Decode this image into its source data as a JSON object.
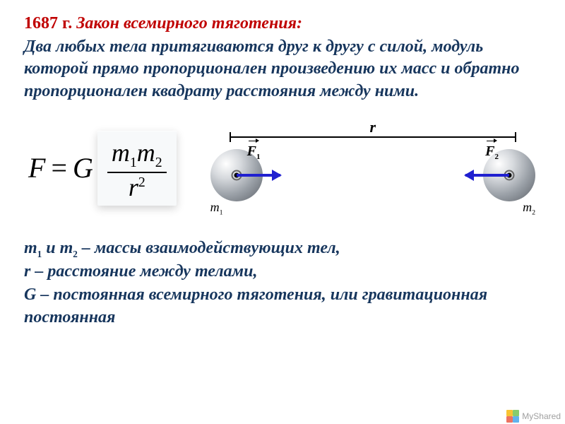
{
  "title": {
    "year": "1687 г.",
    "law_name": "Закон всемирного тяготения:"
  },
  "definition": "Два любых тела притягиваются друг к другу с силой, модуль которой прямо пропорционален произведению их масс и обратно пропорционален квадрату расстояния между ними.",
  "formula": {
    "lhs": "F",
    "equals": "=",
    "constant": "G",
    "numerator_m1": "m",
    "numerator_sub1": "1",
    "numerator_m2": "m",
    "numerator_sub2": "2",
    "denominator_r": "r",
    "denominator_exp": "2"
  },
  "diagram": {
    "distance_label": "r",
    "force1_base": "F",
    "force1_sub": "1",
    "force2_base": "F",
    "force2_sub": "2",
    "mass1_base": "m",
    "mass1_sub": "1",
    "mass2_base": "m",
    "mass2_sub": "2",
    "arrow_color": "#2020d0",
    "sphere_gradient_stops": [
      "#ffffff",
      "#d6d9dd",
      "#9aa0a7",
      "#5a5f66"
    ]
  },
  "legend": {
    "line1_pre": "m",
    "line1_sub1": "1",
    "line1_mid": " и m",
    "line1_sub2": "2",
    "line1_post": " – массы взаимодействующих тел,",
    "line2": "r – расстояние между телами,",
    "line3": "G – постоянная всемирного тяготения, или гравитационная постоянная"
  },
  "colors": {
    "title_red": "#c00000",
    "text_blue": "#17365d",
    "panel_bg": "#f7f9fa"
  },
  "watermark": {
    "text": "MyShared"
  }
}
